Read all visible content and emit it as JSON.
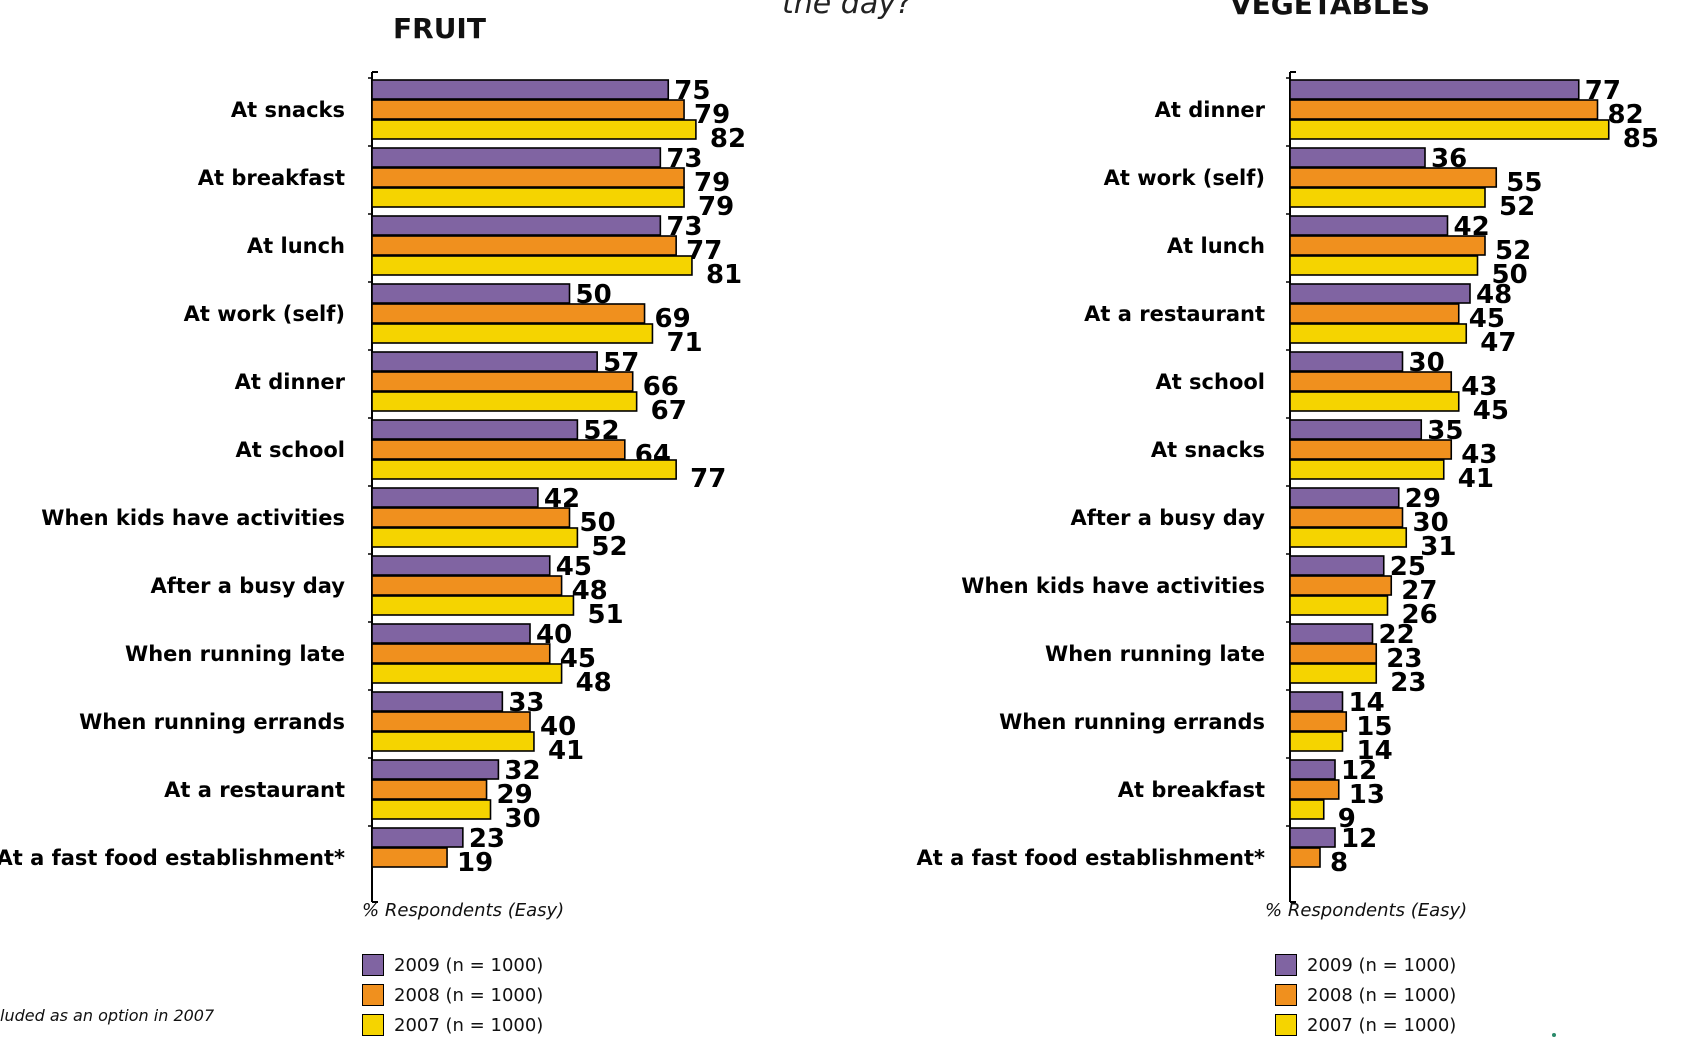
{
  "header": {
    "partial_text": "the day?"
  },
  "footnote": "luded as an option in 2007",
  "chart_data": [
    {
      "type": "bar",
      "orientation": "horizontal",
      "title": "FRUIT",
      "xlabel": "% Respondents (Easy)",
      "xlim": [
        0,
        100
      ],
      "categories": [
        "At snacks",
        "At breakfast",
        "At lunch",
        "At work (self)",
        "At dinner",
        "At school",
        "When kids have activities",
        "After a busy day",
        "When running late",
        "When running errands",
        "At a restaurant",
        "At a fast food establishment*"
      ],
      "series": [
        {
          "name": "2009 (n = 1000)",
          "color": "#8064a2",
          "values": [
            75,
            73,
            73,
            50,
            57,
            52,
            42,
            45,
            40,
            33,
            32,
            23
          ]
        },
        {
          "name": "2008 (n = 1000)",
          "color": "#f0901e",
          "values": [
            79,
            79,
            77,
            69,
            66,
            64,
            50,
            48,
            45,
            40,
            29,
            19
          ]
        },
        {
          "name": "2007 (n = 1000)",
          "color": "#f5d400",
          "values": [
            82,
            79,
            81,
            71,
            67,
            77,
            52,
            51,
            48,
            41,
            30,
            null
          ]
        }
      ],
      "legend": [
        "2009 (n = 1000)",
        "2008 (n = 1000)",
        "2007 (n = 1000)"
      ]
    },
    {
      "type": "bar",
      "orientation": "horizontal",
      "title": "VEGETABLES",
      "xlabel": "% Respondents (Easy)",
      "xlim": [
        0,
        100
      ],
      "categories": [
        "At dinner",
        "At work (self)",
        "At lunch",
        "At a restaurant",
        "At school",
        "At snacks",
        "After a busy day",
        "When kids have activities",
        "When running late",
        "When running errands",
        "At breakfast",
        "At a fast food establishment*"
      ],
      "series": [
        {
          "name": "2009 (n = 1000)",
          "color": "#8064a2",
          "values": [
            77,
            36,
            42,
            48,
            30,
            35,
            29,
            25,
            22,
            14,
            12,
            12
          ]
        },
        {
          "name": "2008 (n = 1000)",
          "color": "#f0901e",
          "values": [
            82,
            55,
            52,
            45,
            43,
            43,
            30,
            27,
            23,
            15,
            13,
            8
          ]
        },
        {
          "name": "2007 (n = 1000)",
          "color": "#f5d400",
          "values": [
            85,
            52,
            50,
            47,
            45,
            41,
            31,
            26,
            23,
            14,
            9,
            null
          ]
        }
      ],
      "legend": [
        "2009 (n = 1000)",
        "2008 (n = 1000)",
        "2007 (n = 1000)"
      ]
    }
  ]
}
